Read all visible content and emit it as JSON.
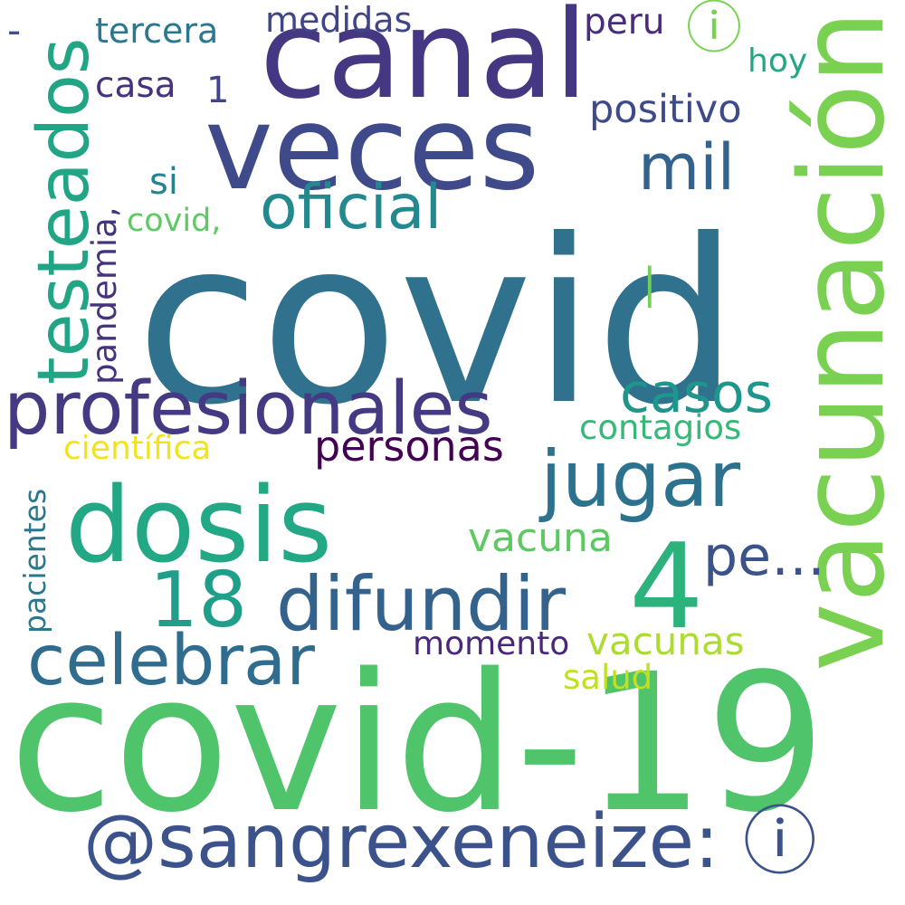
{
  "cloud": {
    "words": [
      {
        "text": "covid",
        "color": "#30718e"
      },
      {
        "text": "covid-19",
        "color": "#4fc46a"
      },
      {
        "text": "canal",
        "color": "#453781"
      },
      {
        "text": "veces",
        "color": "#3f4a8a"
      },
      {
        "text": "vacunación",
        "color": "#7ad151"
      },
      {
        "text": "dosis",
        "color": "#22a884"
      },
      {
        "text": "@sangrexeneize: ⓘ",
        "color": "#3b528b"
      },
      {
        "text": "profesionales",
        "color": "#443983"
      },
      {
        "text": "testeados",
        "color": "#21a585"
      },
      {
        "text": "jugar",
        "color": "#2c728e"
      },
      {
        "text": "4",
        "color": "#2db27d"
      },
      {
        "text": "difundir",
        "color": "#33638d"
      },
      {
        "text": "18",
        "color": "#1f9e89"
      },
      {
        "text": "celebrar",
        "color": "#2f6c8e"
      },
      {
        "text": "oficial",
        "color": "#23898e"
      },
      {
        "text": "mil",
        "color": "#33638d"
      },
      {
        "text": "casos",
        "color": "#1f968b"
      },
      {
        "text": "pe…",
        "color": "#3b528b"
      },
      {
        "text": "personas",
        "color": "#440154"
      },
      {
        "text": "vacuna",
        "color": "#5ec962"
      },
      {
        "text": "vacunas",
        "color": "#addc30"
      },
      {
        "text": "positivo",
        "color": "#3e4a89"
      },
      {
        "text": "medidas",
        "color": "#414487"
      },
      {
        "text": "tercera",
        "color": "#2a788e"
      },
      {
        "text": "casa",
        "color": "#46327e"
      },
      {
        "text": "peru",
        "color": "#472d7b"
      },
      {
        "text": "hoy",
        "color": "#22a785"
      },
      {
        "text": "contagios",
        "color": "#37b878"
      },
      {
        "text": "científica",
        "color": "#f0e51c"
      },
      {
        "text": "momento",
        "color": "#482979"
      },
      {
        "text": "salud",
        "color": "#c2df23"
      },
      {
        "text": "pandemia,",
        "color": "#46337f"
      },
      {
        "text": "pacientes",
        "color": "#2a788e"
      },
      {
        "text": "si",
        "color": "#26828e"
      },
      {
        "text": "covid,",
        "color": "#5ec962"
      },
      {
        "text": "1",
        "color": "#414487"
      },
      {
        "text": "-",
        "color": "#3b528b"
      },
      {
        "text": "|",
        "color": "#73d056"
      },
      {
        "text": "ⓘ",
        "color": "#7ad151"
      }
    ]
  }
}
